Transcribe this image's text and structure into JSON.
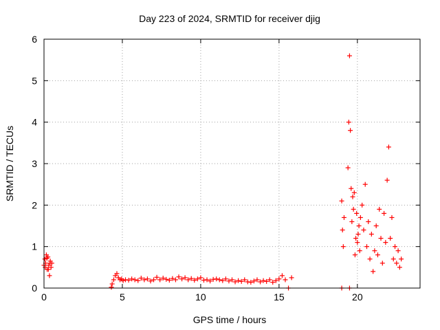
{
  "chart_data": {
    "type": "scatter",
    "title": "Day 223 of 2024, SRMTID for receiver djig",
    "xlabel": "GPS time / hours",
    "ylabel": "SRMTID / TECUs",
    "xlim": [
      0,
      24
    ],
    "ylim": [
      0,
      6
    ],
    "xticks": [
      0,
      5,
      10,
      15,
      20
    ],
    "yticks": [
      0,
      1,
      2,
      3,
      4,
      5,
      6
    ],
    "grid": true,
    "marker": "+",
    "series": [
      {
        "name": "SRMTID",
        "color": "#ff0000",
        "x": [
          0.0,
          0.05,
          0.1,
          0.15,
          0.2,
          0.25,
          0.3,
          0.35,
          0.4,
          0.45,
          0.5,
          0.08,
          0.18,
          0.28,
          0.38,
          4.3,
          4.35,
          4.45,
          4.55,
          4.65,
          4.75,
          4.85,
          4.95,
          5.05,
          5.2,
          5.4,
          5.6,
          5.8,
          6.0,
          6.2,
          6.4,
          6.6,
          6.8,
          7.0,
          7.2,
          7.4,
          7.6,
          7.8,
          8.0,
          8.2,
          8.4,
          8.6,
          8.8,
          9.0,
          9.2,
          9.4,
          9.6,
          9.8,
          10.0,
          10.2,
          10.4,
          10.6,
          10.8,
          11.0,
          11.2,
          11.4,
          11.6,
          11.8,
          12.0,
          12.2,
          12.4,
          12.6,
          12.8,
          13.0,
          13.2,
          13.4,
          13.6,
          13.8,
          14.0,
          14.2,
          14.4,
          14.6,
          14.8,
          15.0,
          15.2,
          15.4,
          15.6,
          15.8,
          19.0,
          19.5,
          19.0,
          19.05,
          19.1,
          19.15,
          19.4,
          19.45,
          19.5,
          19.55,
          19.6,
          19.65,
          19.7,
          19.75,
          19.8,
          19.85,
          19.9,
          19.95,
          20.0,
          20.05,
          20.1,
          20.15,
          20.2,
          20.3,
          20.4,
          20.5,
          20.6,
          20.7,
          20.8,
          20.9,
          21.0,
          21.1,
          21.2,
          21.3,
          21.4,
          21.5,
          21.6,
          21.7,
          21.8,
          21.9,
          22.0,
          22.1,
          22.2,
          22.3,
          22.4,
          22.5,
          22.6,
          22.7,
          22.8
        ],
        "y": [
          0.55,
          0.7,
          0.6,
          0.8,
          0.45,
          0.75,
          0.55,
          0.3,
          0.65,
          0.5,
          0.6,
          0.5,
          0.72,
          0.45,
          0.6,
          0.02,
          0.1,
          0.2,
          0.3,
          0.35,
          0.25,
          0.2,
          0.22,
          0.18,
          0.2,
          0.19,
          0.22,
          0.2,
          0.18,
          0.24,
          0.2,
          0.22,
          0.17,
          0.2,
          0.26,
          0.2,
          0.24,
          0.21,
          0.19,
          0.23,
          0.2,
          0.27,
          0.22,
          0.25,
          0.2,
          0.23,
          0.19,
          0.22,
          0.25,
          0.19,
          0.2,
          0.17,
          0.21,
          0.22,
          0.2,
          0.18,
          0.22,
          0.17,
          0.2,
          0.15,
          0.18,
          0.16,
          0.2,
          0.15,
          0.14,
          0.17,
          0.2,
          0.15,
          0.18,
          0.16,
          0.2,
          0.14,
          0.18,
          0.22,
          0.3,
          0.2,
          0.0,
          0.25,
          0.0,
          0.0,
          2.1,
          1.4,
          1.0,
          1.7,
          2.9,
          4.0,
          5.6,
          3.8,
          2.4,
          1.6,
          2.2,
          1.9,
          2.3,
          0.8,
          1.2,
          1.8,
          1.1,
          1.3,
          1.5,
          0.9,
          1.7,
          2.0,
          1.4,
          2.5,
          1.0,
          1.6,
          0.7,
          1.3,
          0.4,
          0.9,
          1.5,
          0.8,
          1.9,
          1.2,
          0.6,
          1.8,
          1.1,
          2.6,
          3.4,
          1.2,
          1.7,
          0.7,
          1.0,
          0.6,
          0.9,
          0.5,
          0.7
        ]
      }
    ]
  }
}
